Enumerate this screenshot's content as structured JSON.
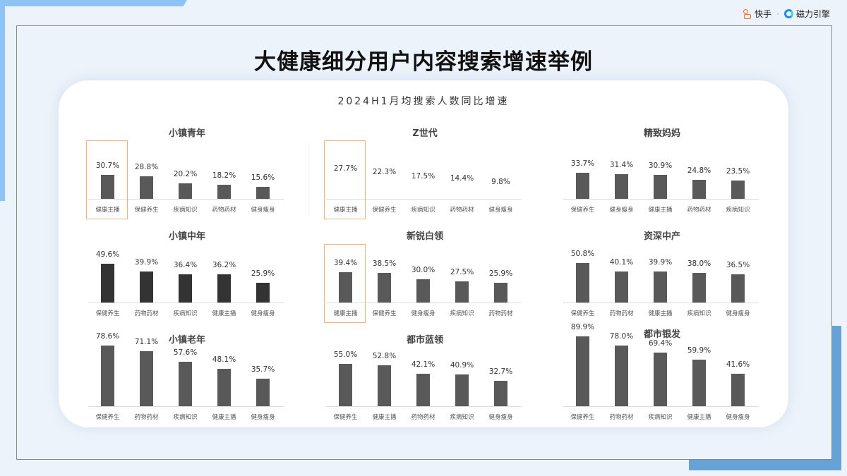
{
  "brand": {
    "kuaishou": "快手",
    "separator": "·",
    "cili": "磁力引擎"
  },
  "header": {
    "title": "大健康细分用户内容搜索增速举例",
    "subtitle": "2024H1月均搜索人数同比增速"
  },
  "colors": {
    "bar": "#595959",
    "bar_dark": "#333333",
    "highlight_border": "#f2b27a",
    "deco_light_blue": "#8ec4f5",
    "deco_blue": "#64a2d8",
    "background": "#edf3fa"
  },
  "chart_data": [
    {
      "type": "bar",
      "title": "小镇青年",
      "categories": [
        "健康主播",
        "保健养生",
        "疾病知识",
        "药物药材",
        "健身瘦身"
      ],
      "values": [
        30.7,
        28.8,
        20.2,
        18.2,
        15.6
      ],
      "labels": [
        "30.7%",
        "28.8%",
        "20.2%",
        "18.2%",
        "15.6%"
      ],
      "highlight_index": 0,
      "unit": "%"
    },
    {
      "type": "bar",
      "title": "Z世代",
      "categories": [
        "健康主播",
        "保健养生",
        "疾病知识",
        "药物药材",
        "健身瘦身"
      ],
      "values": [
        27.7,
        22.3,
        17.5,
        14.4,
        9.8
      ],
      "labels": [
        "27.7%",
        "22.3%",
        "17.5%",
        "14.4%",
        "9.8%"
      ],
      "highlight_index": 0,
      "bars_visible": false,
      "unit": "%"
    },
    {
      "type": "bar",
      "title": "精致妈妈",
      "categories": [
        "保健养生",
        "健身瘦身",
        "健康主播",
        "药物药材",
        "疾病知识"
      ],
      "values": [
        33.7,
        31.4,
        30.9,
        24.8,
        23.5
      ],
      "labels": [
        "33.7%",
        "31.4%",
        "30.9%",
        "24.8%",
        "23.5%"
      ],
      "unit": "%"
    },
    {
      "type": "bar",
      "title": "小镇中年",
      "categories": [
        "保健养生",
        "药物药材",
        "疾病知识",
        "健康主播",
        "健身瘦身"
      ],
      "values": [
        49.6,
        39.9,
        36.4,
        36.2,
        25.9
      ],
      "labels": [
        "49.6%",
        "39.9%",
        "36.4%",
        "36.2%",
        "25.9%"
      ],
      "bar_color": "#333333",
      "unit": "%"
    },
    {
      "type": "bar",
      "title": "新锐白领",
      "categories": [
        "健康主播",
        "保健养生",
        "健身瘦身",
        "疾病知识",
        "药物药材"
      ],
      "values": [
        39.4,
        38.5,
        30.0,
        27.5,
        25.9
      ],
      "labels": [
        "39.4%",
        "38.5%",
        "30.0%",
        "27.5%",
        "25.9%"
      ],
      "highlight_index": 0,
      "unit": "%"
    },
    {
      "type": "bar",
      "title": "资深中产",
      "categories": [
        "保健养生",
        "药物药材",
        "健康主播",
        "疾病知识",
        "健身瘦身"
      ],
      "values": [
        50.8,
        40.1,
        39.9,
        38.0,
        36.5
      ],
      "labels": [
        "50.8%",
        "40.1%",
        "39.9%",
        "38.0%",
        "36.5%"
      ],
      "unit": "%"
    },
    {
      "type": "bar",
      "title": "小镇老年",
      "categories": [
        "保健养生",
        "药物药材",
        "疾病知识",
        "健康主播",
        "健身瘦身"
      ],
      "values": [
        78.6,
        71.1,
        57.6,
        48.1,
        35.7
      ],
      "labels": [
        "78.6%",
        "71.1%",
        "57.6%",
        "48.1%",
        "35.7%"
      ],
      "unit": "%"
    },
    {
      "type": "bar",
      "title": "都市蓝领",
      "categories": [
        "保健养生",
        "健康主播",
        "药物药材",
        "疾病知识",
        "健身瘦身"
      ],
      "values": [
        55.0,
        52.8,
        42.1,
        40.9,
        32.7
      ],
      "labels": [
        "55.0%",
        "52.8%",
        "42.1%",
        "40.9%",
        "32.7%"
      ],
      "unit": "%"
    },
    {
      "type": "bar",
      "title": "都市银发",
      "categories": [
        "保健养生",
        "药物药材",
        "疾病知识",
        "健康主播",
        "健身瘦身"
      ],
      "values": [
        89.9,
        78.0,
        69.4,
        59.9,
        41.6
      ],
      "labels": [
        "89.9%",
        "78.0%",
        "69.4%",
        "59.9%",
        "41.6%"
      ],
      "unit": "%"
    }
  ]
}
